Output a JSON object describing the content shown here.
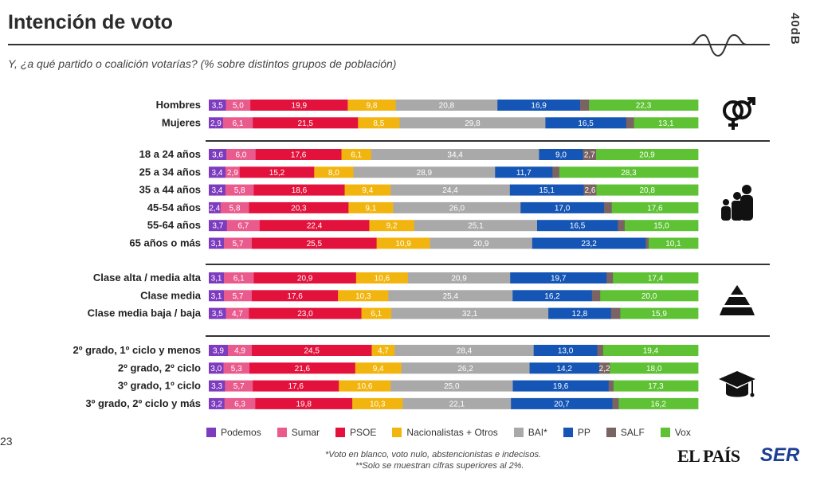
{
  "title": "Intención de voto",
  "subtitle": "Y, ¿a qué partido o coalición votarías? (% sobre distintos grupos de población)",
  "brand_vertical": "40dB",
  "page_number": "23",
  "footnote_1": "*Voto en blanco,  voto nulo, abstencionistas e indecisos.",
  "footnote_2": "**Solo se muestran cifras superiores al 2%.",
  "logos": {
    "elpais": "EL PAÍS",
    "ser": "SER"
  },
  "icons": {
    "group1": "gender-icon",
    "group2": "family-age-icon",
    "group3": "pyramid-class-icon",
    "group4": "graduation-cap-icon"
  },
  "chart_data": {
    "type": "bar",
    "orientation": "horizontal-stacked-100",
    "series": [
      {
        "name": "Podemos",
        "color": "#7d3bbf"
      },
      {
        "name": "Sumar",
        "color": "#e95b8d"
      },
      {
        "name": "PSOE",
        "color": "#e2123c"
      },
      {
        "name": "Nacionalistas + Otros",
        "color": "#f2b50f"
      },
      {
        "name": "BAI*",
        "color": "#a9a9a9"
      },
      {
        "name": "PP",
        "color": "#1455b5"
      },
      {
        "name": "SALF",
        "color": "#7a6363"
      },
      {
        "name": "Vox",
        "color": "#5ec234"
      }
    ],
    "groups": [
      {
        "rows": [
          {
            "label": "Hombres",
            "values": [
              3.5,
              5.0,
              19.9,
              9.8,
              20.8,
              16.9,
              1.8,
              22.3
            ],
            "labels": [
              "3,5",
              "5,0",
              "19,9",
              "9,8",
              "20,8",
              "16,9",
              "",
              "22,3"
            ]
          },
          {
            "label": "Mujeres",
            "values": [
              2.9,
              6.1,
              21.5,
              8.5,
              29.8,
              16.5,
              1.6,
              13.1
            ],
            "labels": [
              "2,9",
              "6,1",
              "21,5",
              "8,5",
              "29,8",
              "16,5",
              "",
              "13,1"
            ]
          }
        ]
      },
      {
        "rows": [
          {
            "label": "18 a 24 años",
            "values": [
              3.6,
              6.0,
              17.6,
              6.1,
              34.4,
              9.0,
              2.7,
              20.9
            ],
            "labels": [
              "3,6",
              "6,0",
              "17,6",
              "6,1",
              "34,4",
              "9,0",
              "2,7",
              "20,9"
            ]
          },
          {
            "label": "25 a 34 años",
            "values": [
              3.4,
              2.9,
              15.2,
              8.0,
              28.9,
              11.7,
              1.4,
              28.3
            ],
            "labels": [
              "3,4",
              "2,9",
              "15,2",
              "8,0",
              "28,9",
              "11,7",
              "",
              "28,3"
            ]
          },
          {
            "label": "35 a 44 años",
            "values": [
              3.4,
              5.8,
              18.6,
              9.4,
              24.4,
              15.1,
              2.6,
              20.8
            ],
            "labels": [
              "3,4",
              "5,8",
              "18,6",
              "9,4",
              "24,4",
              "15,1",
              "2,6",
              "20,8"
            ]
          },
          {
            "label": "45-54 años",
            "values": [
              2.4,
              5.8,
              20.3,
              9.1,
              26.0,
              17.0,
              1.6,
              17.6
            ],
            "labels": [
              "2,4",
              "5,8",
              "20,3",
              "9,1",
              "26,0",
              "17,0",
              "",
              "17,6"
            ]
          },
          {
            "label": "55-64 años",
            "values": [
              3.7,
              6.7,
              22.4,
              9.2,
              25.1,
              16.5,
              1.4,
              15.0
            ],
            "labels": [
              "3,7",
              "6,7",
              "22,4",
              "9,2",
              "25,1",
              "16,5",
              "",
              "15,0"
            ]
          },
          {
            "label": "65 años o más",
            "values": [
              3.1,
              5.7,
              25.5,
              10.9,
              20.9,
              23.2,
              0.6,
              10.1
            ],
            "labels": [
              "3,1",
              "5,7",
              "25,5",
              "10,9",
              "20,9",
              "23,2",
              "",
              "10,1"
            ]
          }
        ]
      },
      {
        "rows": [
          {
            "label": "Clase alta / media alta",
            "values": [
              3.1,
              6.1,
              20.9,
              10.6,
              20.9,
              19.7,
              1.3,
              17.4
            ],
            "labels": [
              "3,1",
              "6,1",
              "20,9",
              "10,6",
              "20,9",
              "19,7",
              "",
              "17,4"
            ]
          },
          {
            "label": "Clase media",
            "values": [
              3.1,
              5.7,
              17.6,
              10.3,
              25.4,
              16.2,
              1.7,
              20.0
            ],
            "labels": [
              "3,1",
              "5,7",
              "17,6",
              "10,3",
              "25,4",
              "16,2",
              "",
              "20,0"
            ]
          },
          {
            "label": "Clase media baja / baja",
            "values": [
              3.5,
              4.7,
              23.0,
              6.1,
              32.1,
              12.8,
              1.9,
              15.9
            ],
            "labels": [
              "3,5",
              "4,7",
              "23,0",
              "6,1",
              "32,1",
              "12,8",
              "",
              "15,9"
            ]
          }
        ]
      },
      {
        "rows": [
          {
            "label": "2º grado, 1º ciclo y menos",
            "values": [
              3.9,
              4.9,
              24.5,
              4.7,
              28.4,
              13.0,
              1.2,
              19.4
            ],
            "labels": [
              "3,9",
              "4,9",
              "24,5",
              "4,7",
              "28,4",
              "13,0",
              "",
              "19,4"
            ]
          },
          {
            "label": "2º grado, 2º ciclo",
            "values": [
              3.0,
              5.3,
              21.6,
              9.4,
              26.2,
              14.2,
              2.2,
              18.0
            ],
            "labels": [
              "3,0",
              "5,3",
              "21,6",
              "9,4",
              "26,2",
              "14,2",
              "2,2",
              "18,0"
            ]
          },
          {
            "label": "3º grado, 1º ciclo",
            "values": [
              3.3,
              5.7,
              17.6,
              10.6,
              25.0,
              19.6,
              1.0,
              17.3
            ],
            "labels": [
              "3,3",
              "5,7",
              "17,6",
              "10,6",
              "25,0",
              "19,6",
              "",
              "17,3"
            ]
          },
          {
            "label": "3º grado, 2º ciclo y más",
            "values": [
              3.2,
              6.3,
              19.8,
              10.3,
              22.1,
              20.7,
              1.3,
              16.2
            ],
            "labels": [
              "3,2",
              "6,3",
              "19,8",
              "10,3",
              "22,1",
              "20,7",
              "",
              "16,2"
            ]
          }
        ]
      }
    ]
  }
}
